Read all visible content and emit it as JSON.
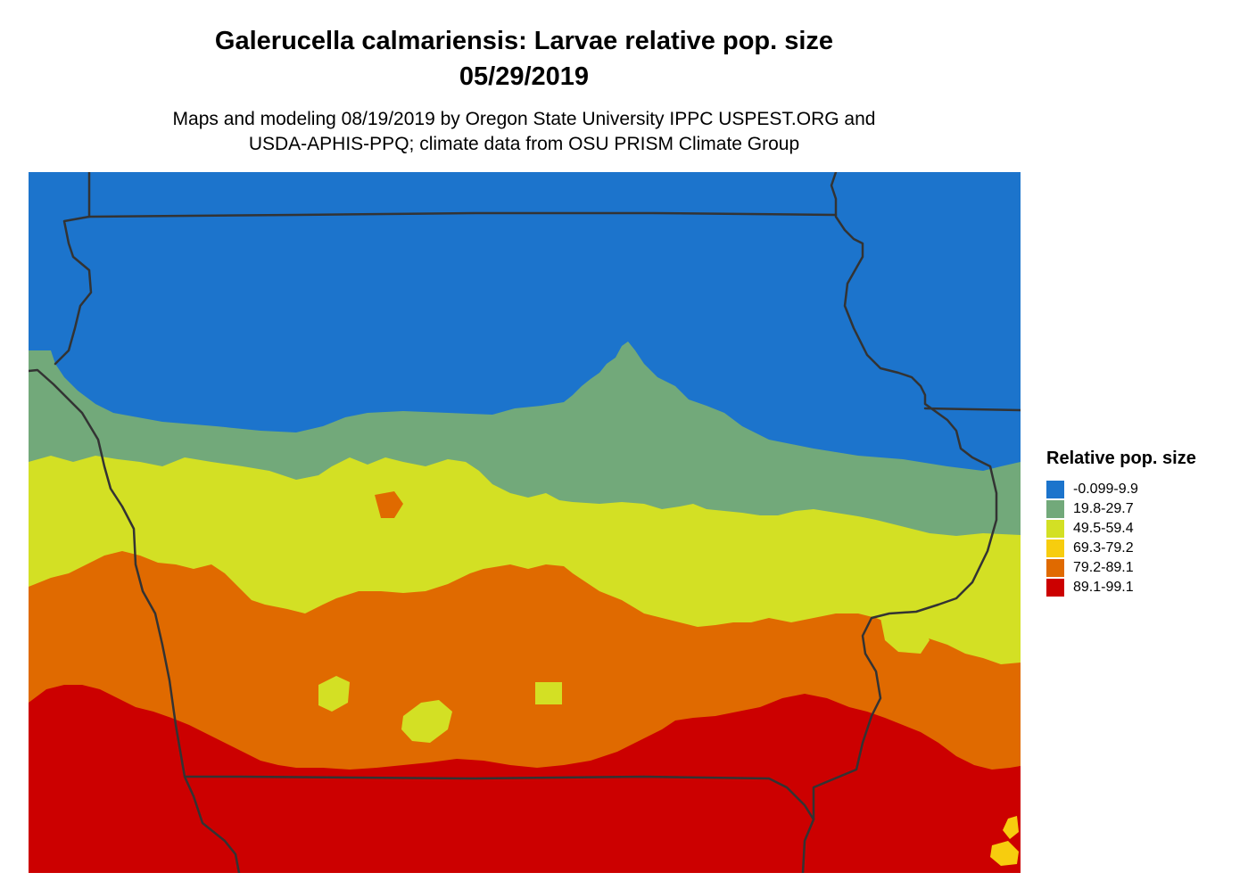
{
  "title": {
    "line1": "Galerucella calmariensis: Larvae relative pop. size",
    "line2": "05/29/2019"
  },
  "subtitle": {
    "line1": "Maps and modeling 08/19/2019 by Oregon State University IPPC USPEST.ORG and",
    "line2": "USDA-APHIS-PPQ; climate data from OSU PRISM Climate Group"
  },
  "legend": {
    "title": "Relative pop. size",
    "items": [
      {
        "label": "-0.099-9.9",
        "color": "#1c74cc"
      },
      {
        "label": "19.8-29.7",
        "color": "#72a97a"
      },
      {
        "label": "49.5-59.4",
        "color": "#d3e024"
      },
      {
        "label": "69.3-79.2",
        "color": "#f7cd0e"
      },
      {
        "label": "79.2-89.1",
        "color": "#e06a00"
      },
      {
        "label": "89.1-99.1",
        "color": "#cc0000"
      }
    ]
  },
  "map": {
    "border_color": "#333333"
  }
}
